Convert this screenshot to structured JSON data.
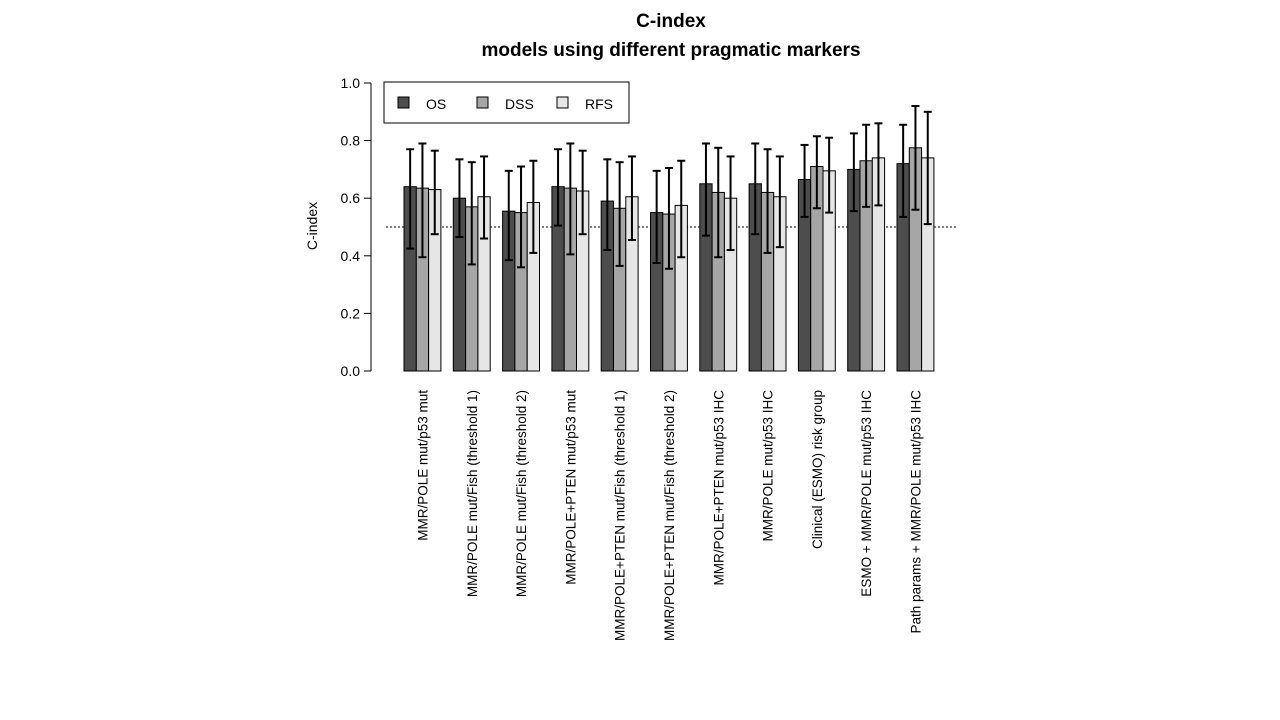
{
  "chart_data": {
    "type": "bar",
    "title_lines": [
      "C-index",
      "models using different pragmatic markers"
    ],
    "ylabel": "C-index",
    "xlabel": "",
    "ylim": [
      0,
      1
    ],
    "yticks": [
      "0.0",
      "0.2",
      "0.4",
      "0.6",
      "0.8",
      "1.0"
    ],
    "reference_line": 0.5,
    "legend_position": "top-left",
    "grid": false,
    "categories": [
      "MMR/POLE mut/p53 mut",
      "MMR/POLE mut/Fish (threshold 1)",
      "MMR/POLE mut/Fish (threshold 2)",
      "MMR/POLE+PTEN mut/p53 mut",
      "MMR/POLE+PTEN mut/Fish (threshold 1)",
      "MMR/POLE+PTEN mut/Fish (threshold 2)",
      "MMR/POLE+PTEN mut/p53 IHC",
      "MMR/POLE mut/p53 IHC",
      "Clinical (ESMO) risk group",
      "ESMO + MMR/POLE mut/p53 IHC",
      "Path params + MMR/POLE mut/p53 IHC"
    ],
    "series": [
      {
        "name": "OS",
        "color": "#4d4d4d",
        "values": [
          0.64,
          0.6,
          0.555,
          0.64,
          0.59,
          0.55,
          0.65,
          0.65,
          0.665,
          0.7,
          0.72
        ],
        "lower": [
          0.425,
          0.465,
          0.385,
          0.505,
          0.42,
          0.375,
          0.47,
          0.475,
          0.535,
          0.555,
          0.535
        ],
        "upper": [
          0.77,
          0.735,
          0.695,
          0.77,
          0.735,
          0.695,
          0.79,
          0.79,
          0.785,
          0.825,
          0.855
        ]
      },
      {
        "name": "DSS",
        "color": "#a6a6a6",
        "values": [
          0.635,
          0.57,
          0.55,
          0.635,
          0.565,
          0.545,
          0.62,
          0.62,
          0.71,
          0.73,
          0.775
        ],
        "lower": [
          0.395,
          0.37,
          0.36,
          0.405,
          0.365,
          0.355,
          0.395,
          0.41,
          0.565,
          0.57,
          0.56
        ],
        "upper": [
          0.79,
          0.725,
          0.71,
          0.79,
          0.725,
          0.705,
          0.775,
          0.77,
          0.815,
          0.855,
          0.92
        ]
      },
      {
        "name": "RFS",
        "color": "#e6e6e6",
        "values": [
          0.63,
          0.605,
          0.585,
          0.625,
          0.605,
          0.575,
          0.6,
          0.605,
          0.695,
          0.74,
          0.74
        ],
        "lower": [
          0.475,
          0.46,
          0.41,
          0.475,
          0.455,
          0.395,
          0.42,
          0.43,
          0.55,
          0.575,
          0.51
        ],
        "upper": [
          0.765,
          0.745,
          0.73,
          0.765,
          0.745,
          0.73,
          0.745,
          0.745,
          0.81,
          0.86,
          0.9
        ]
      }
    ]
  }
}
